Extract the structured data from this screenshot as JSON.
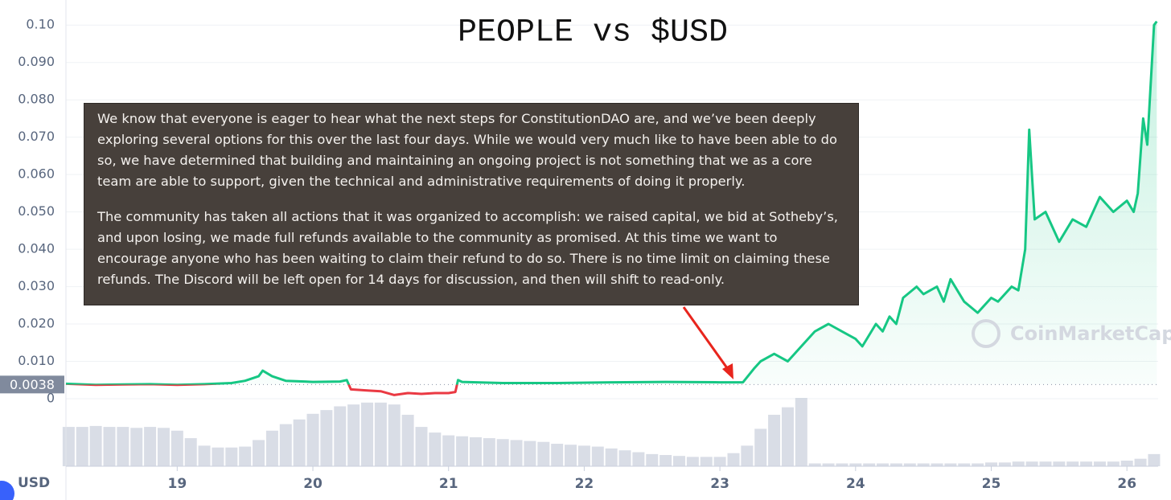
{
  "chart_data": {
    "type": "line",
    "title": "PEOPLE vs $USD",
    "x": [
      18.18,
      18.4,
      18.6,
      18.8,
      19.0,
      19.2,
      19.4,
      19.5,
      19.6,
      19.63,
      19.7,
      19.8,
      20.0,
      20.2,
      20.25,
      20.28,
      20.4,
      20.5,
      20.6,
      20.7,
      20.8,
      20.9,
      21.0,
      21.05,
      21.07,
      21.1,
      21.4,
      21.8,
      22.2,
      22.6,
      23.0,
      23.17,
      23.25,
      23.3,
      23.4,
      23.5,
      23.6,
      23.7,
      23.8,
      23.9,
      24.0,
      24.05,
      24.15,
      24.2,
      24.25,
      24.3,
      24.35,
      24.45,
      24.5,
      24.6,
      24.65,
      24.7,
      24.8,
      24.9,
      25.0,
      25.05,
      25.15,
      25.2,
      25.25,
      25.28,
      25.32,
      25.4,
      25.5,
      25.6,
      25.7,
      25.8,
      25.9,
      26.0,
      26.05,
      26.08,
      26.12,
      26.15,
      26.2,
      26.22
    ],
    "values": [
      0.004,
      0.0037,
      0.0038,
      0.0039,
      0.0037,
      0.0039,
      0.0042,
      0.0048,
      0.006,
      0.0075,
      0.006,
      0.0048,
      0.0045,
      0.0046,
      0.005,
      0.0025,
      0.0022,
      0.002,
      0.001,
      0.0015,
      0.0013,
      0.0015,
      0.0015,
      0.0018,
      0.005,
      0.0045,
      0.0042,
      0.0042,
      0.0044,
      0.0045,
      0.0044,
      0.0044,
      0.008,
      0.01,
      0.012,
      0.01,
      0.014,
      0.018,
      0.02,
      0.018,
      0.016,
      0.014,
      0.02,
      0.018,
      0.022,
      0.02,
      0.027,
      0.03,
      0.028,
      0.03,
      0.026,
      0.032,
      0.026,
      0.023,
      0.027,
      0.026,
      0.03,
      0.029,
      0.04,
      0.072,
      0.048,
      0.05,
      0.042,
      0.048,
      0.046,
      0.054,
      0.05,
      0.053,
      0.05,
      0.055,
      0.075,
      0.068,
      0.1,
      0.101
    ],
    "color": "#16c784",
    "below_baseline_color": "#ea3943",
    "baseline": {
      "value": 0.0038,
      "label": "0.0038"
    },
    "xlim": [
      18.18,
      26.23
    ],
    "xticks": [
      19,
      20,
      21,
      22,
      23,
      24,
      25,
      26
    ],
    "ylim": [
      0,
      0.105
    ],
    "yticks": [
      0,
      {
        "value": 0.01,
        "label": "0.010"
      },
      {
        "value": 0.02,
        "label": "0.020"
      },
      {
        "value": 0.03,
        "label": "0.030"
      },
      {
        "value": 0.04,
        "label": "0.040"
      },
      {
        "value": 0.05,
        "label": "0.050"
      },
      {
        "value": 0.06,
        "label": "0.060"
      },
      {
        "value": 0.07,
        "label": "0.070"
      },
      {
        "value": 0.08,
        "label": "0.080"
      },
      {
        "value": 0.09,
        "label": "0.090"
      },
      {
        "value": 0.1,
        "label": "0.10"
      }
    ],
    "grid": true,
    "currency_label": "USD",
    "watermark": "CoinMarketCap",
    "volume": {
      "color": "#c9cfdc",
      "x": [
        18.2,
        18.3,
        18.4,
        18.5,
        18.6,
        18.7,
        18.8,
        18.9,
        19.0,
        19.1,
        19.2,
        19.3,
        19.4,
        19.5,
        19.6,
        19.7,
        19.8,
        19.9,
        20.0,
        20.1,
        20.2,
        20.3,
        20.4,
        20.5,
        20.6,
        20.7,
        20.8,
        20.9,
        21.0,
        21.1,
        21.2,
        21.3,
        21.4,
        21.5,
        21.6,
        21.7,
        21.8,
        21.9,
        22.0,
        22.1,
        22.2,
        22.3,
        22.4,
        22.5,
        22.6,
        22.7,
        22.8,
        22.9,
        23.0,
        23.1,
        23.2,
        23.3,
        23.4,
        23.5,
        23.6,
        23.7,
        23.8,
        23.9,
        24.0,
        24.1,
        24.2,
        24.3,
        24.4,
        24.5,
        24.6,
        24.7,
        24.8,
        24.9,
        25.0,
        25.1,
        25.2,
        25.3,
        25.4,
        25.5,
        25.6,
        25.7,
        25.8,
        25.9,
        26.0,
        26.1,
        26.2
      ],
      "values": [
        42,
        42,
        43,
        42,
        42,
        41,
        42,
        41,
        38,
        30,
        22,
        20,
        20,
        21,
        28,
        38,
        45,
        50,
        56,
        60,
        64,
        66,
        68,
        68,
        66,
        55,
        42,
        36,
        33,
        32,
        31,
        30,
        29,
        28,
        27,
        26,
        24,
        23,
        22,
        21,
        19,
        17,
        15,
        13,
        12,
        11,
        10,
        10,
        10,
        14,
        22,
        40,
        55,
        63,
        73,
        3,
        3,
        3,
        3,
        3,
        3,
        3,
        3,
        3,
        3,
        3,
        3,
        3,
        4,
        4,
        5,
        5,
        5,
        5,
        5,
        5,
        5,
        5,
        6,
        8,
        13
      ]
    },
    "annotation": {
      "paragraphs": [
        "We know that everyone is eager to hear what the next steps for ConstitutionDAO are, and we’ve been deeply exploring several options for this over the last four days. While we would very much like to have been able to do so, we have determined that building and maintaining an ongoing project is not something that we as a core team are able to support, given the technical and administrative requirements of doing it properly.",
        "The community has taken all actions that it was organized to accomplish: we raised capital, we bid at Sotheby’s, and upon losing, we made full refunds available to the community as promised. At this time we want to encourage anyone who has been waiting to claim their refund to do so. There is no time limit on claiming these refunds. The Discord will be left open for 14 days for discussion, and then will shift to read-only."
      ]
    }
  }
}
